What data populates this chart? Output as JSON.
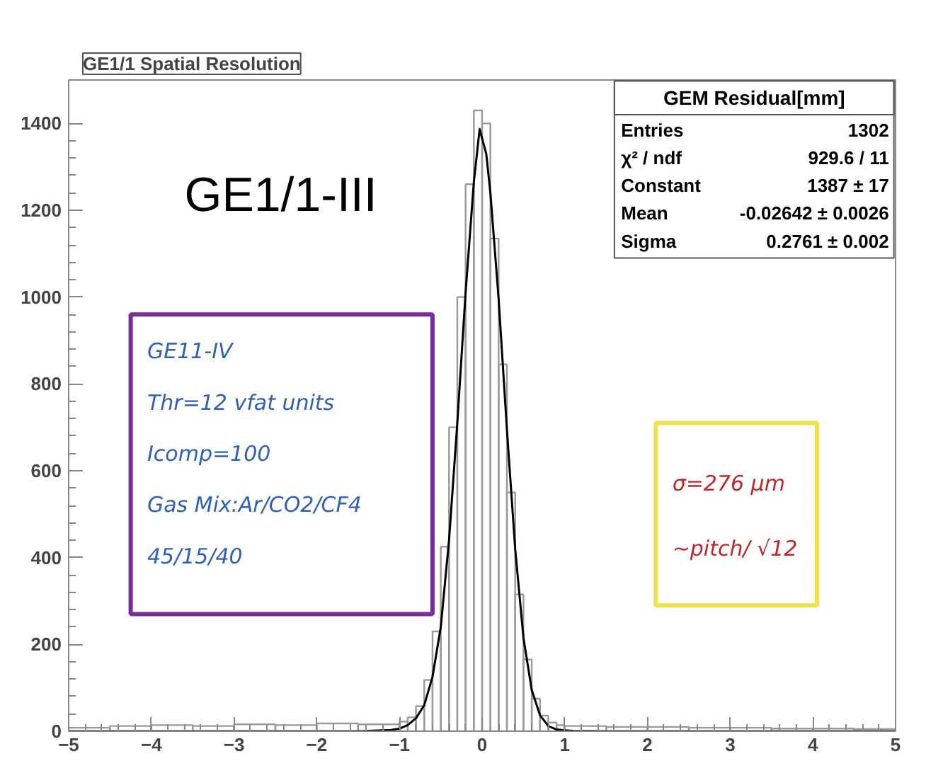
{
  "chart_data": {
    "type": "histogram",
    "title": "GE1/1 Spatial Resolution",
    "xlim": [
      -5,
      5
    ],
    "ylim": [
      0,
      1500
    ],
    "xticks": [
      -5,
      -4,
      -3,
      -2,
      -1,
      0,
      1,
      2,
      3,
      4,
      5
    ],
    "yticks": [
      0,
      200,
      400,
      600,
      800,
      1000,
      1200,
      1400
    ],
    "grid": false,
    "series": [
      {
        "color": "#9a9a9a",
        "bins": [
          -5.0,
          -4.5,
          -4.0,
          -3.5,
          -3.0,
          -2.5,
          -2.0,
          -1.5,
          -1.0,
          -0.9,
          -0.8,
          -0.7,
          -0.6,
          -0.5,
          -0.4,
          -0.3,
          -0.2,
          -0.1,
          0.0,
          0.1,
          0.2,
          0.3,
          0.4,
          0.5,
          0.6,
          0.7,
          0.8,
          0.9,
          1.0,
          1.5,
          2.0,
          2.5,
          3.0,
          3.5,
          4.0,
          4.5,
          5.0
        ],
        "values": [
          8,
          12,
          14,
          12,
          16,
          14,
          18,
          16,
          22,
          32,
          58,
          118,
          230,
          425,
          700,
          1000,
          1260,
          1430,
          1400,
          1135,
          845,
          550,
          315,
          165,
          75,
          36,
          20,
          14,
          12,
          10,
          10,
          8,
          8,
          6,
          6,
          5
        ]
      },
      {
        "type": "line",
        "color": "#000000",
        "x": [
          -5,
          -3,
          -1.5,
          -1.1,
          -1.0,
          -0.9,
          -0.8,
          -0.7,
          -0.6,
          -0.5,
          -0.4,
          -0.3,
          -0.2,
          -0.1,
          -0.03,
          0.05,
          0.1,
          0.2,
          0.3,
          0.4,
          0.5,
          0.6,
          0.7,
          0.8,
          0.9,
          1.0,
          1.1,
          1.5,
          3,
          5
        ],
        "values": [
          0,
          0,
          0,
          3,
          6,
          14,
          30,
          60,
          125,
          240,
          440,
          710,
          1010,
          1265,
          1387,
          1330,
          1240,
          995,
          695,
          420,
          215,
          95,
          37,
          12,
          4,
          2,
          1,
          0,
          0,
          0
        ]
      }
    ],
    "annotations": [
      "GE1/1-III",
      "GE11-IV",
      "Thr=12 vfat units",
      "Icomp=100",
      "Gas Mix:Ar/CO2/CF4",
      "45/15/40",
      "σ=276 µm",
      "~pitch/ √12",
      "GEM Residual[mm]",
      "Entries",
      "1302",
      "χ² / ndf",
      "929.6 / 11",
      "Constant",
      "1387 ± 17",
      "Mean",
      "-0.02642 ± 0.0026",
      "Sigma",
      "0.2761 ± 0.002"
    ]
  }
}
